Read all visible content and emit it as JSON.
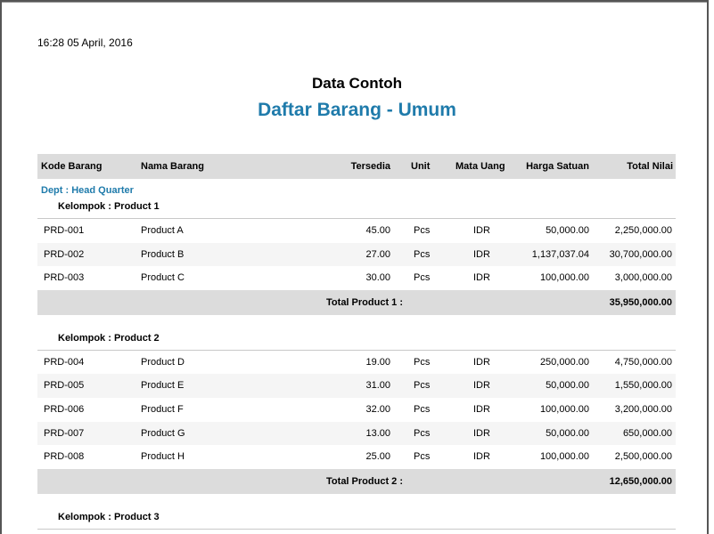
{
  "report": {
    "timestamp": "16:28   05 April, 2016",
    "title": "Data Contoh",
    "subtitle": "Daftar Barang - Umum"
  },
  "columns": [
    "Kode Barang",
    "Nama Barang",
    "Tersedia",
    "Unit",
    "Mata Uang",
    "Harga Satuan",
    "Total Nilai"
  ],
  "dept": "Dept : Head Quarter",
  "groups": [
    {
      "label": "Kelompok : Product 1",
      "rows": [
        [
          "PRD-001",
          "Product A",
          "45.00",
          "Pcs",
          "IDR",
          "50,000.00",
          "2,250,000.00"
        ],
        [
          "PRD-002",
          "Product B",
          "27.00",
          "Pcs",
          "IDR",
          "1,137,037.04",
          "30,700,000.00"
        ],
        [
          "PRD-003",
          "Product C",
          "30.00",
          "Pcs",
          "IDR",
          "100,000.00",
          "3,000,000.00"
        ]
      ],
      "total_label": "Total Product 1 :",
      "total_value": "35,950,000.00"
    },
    {
      "label": "Kelompok : Product 2",
      "rows": [
        [
          "PRD-004",
          "Product D",
          "19.00",
          "Pcs",
          "IDR",
          "250,000.00",
          "4,750,000.00"
        ],
        [
          "PRD-005",
          "Product E",
          "31.00",
          "Pcs",
          "IDR",
          "50,000.00",
          "1,550,000.00"
        ],
        [
          "PRD-006",
          "Product F",
          "32.00",
          "Pcs",
          "IDR",
          "100,000.00",
          "3,200,000.00"
        ],
        [
          "PRD-007",
          "Product G",
          "13.00",
          "Pcs",
          "IDR",
          "50,000.00",
          "650,000.00"
        ],
        [
          "PRD-008",
          "Product H",
          "25.00",
          "Pcs",
          "IDR",
          "100,000.00",
          "2,500,000.00"
        ]
      ],
      "total_label": "Total Product 2 :",
      "total_value": "12,650,000.00"
    },
    {
      "label": "Kelompok : Product 3",
      "rows": []
    }
  ]
}
